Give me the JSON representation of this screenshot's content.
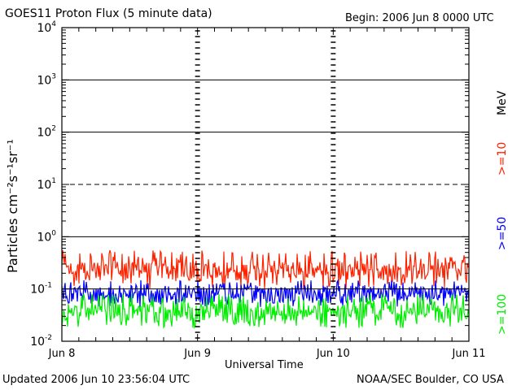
{
  "header": {
    "title": "GOES11 Proton Flux (5 minute data)",
    "begin": "Begin: 2006 Jun 8 0000 UTC"
  },
  "footer": {
    "updated": "Updated 2006 Jun 10 23:56:04 UTC",
    "credit": "NOAA/SEC Boulder, CO USA"
  },
  "colors": {
    "ge10": "#ff2200",
    "ge50": "#0000ff",
    "ge100": "#00ee00"
  },
  "chart_data": {
    "type": "line",
    "title": "GOES11 Proton Flux (5 minute data)",
    "xlabel": "Universal Time",
    "ylabel": "Particles cm⁻²s⁻¹sr⁻¹",
    "yscale": "log",
    "ylim": [
      0.01,
      10000
    ],
    "xlim": [
      "2006-06-08",
      "2006-06-11"
    ],
    "x_ticks": [
      "Jun 8",
      "Jun 9",
      "Jun 10",
      "Jun 11"
    ],
    "y_ticks": [
      {
        "base": "10",
        "exp": "4"
      },
      {
        "base": "10",
        "exp": "3"
      },
      {
        "base": "10",
        "exp": "2"
      },
      {
        "base": "10",
        "exp": "1"
      },
      {
        "base": "10",
        "exp": "0"
      },
      {
        "base": "10",
        "exp": "-1"
      },
      {
        "base": "10",
        "exp": "-2"
      }
    ],
    "legend": {
      "unit": "MeV",
      "entries": [
        ">=10",
        ">=50",
        ">=100"
      ],
      "placement": "right"
    },
    "series": [
      {
        "name": ">=10",
        "color": "#ff2200",
        "typical": 0.22,
        "min": 0.1,
        "max": 0.55
      },
      {
        "name": ">=50",
        "color": "#0000ff",
        "typical": 0.08,
        "min": 0.045,
        "max": 0.15
      },
      {
        "name": ">=100",
        "color": "#00ee00",
        "typical": 0.035,
        "min": 0.018,
        "max": 0.08
      }
    ],
    "reference_lines": [
      {
        "value": 10,
        "style": "dashed"
      },
      {
        "value": 0.1,
        "style": "solid"
      }
    ]
  }
}
